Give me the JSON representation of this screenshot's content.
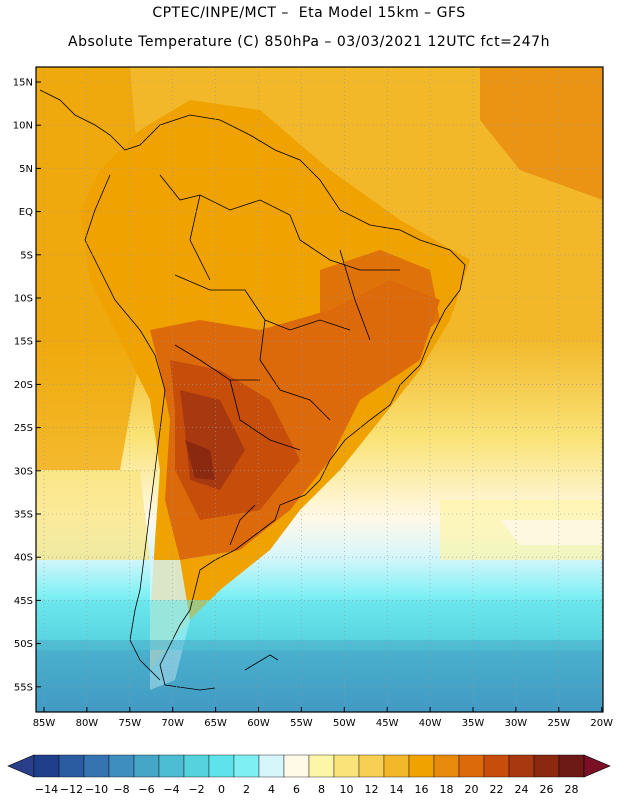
{
  "header": {
    "line1": "CPTEC/INPE/MCT –  Eta Model 15km – GFS",
    "line2": "Absolute Temperature (C) 850hPa – 03/03/2021 12UTC fct=247h"
  },
  "axes": {
    "lat_labels": [
      "15N",
      "10N",
      "5N",
      "EQ",
      "5S",
      "10S",
      "15S",
      "20S",
      "25S",
      "30S",
      "35S",
      "40S",
      "45S",
      "50S",
      "55S"
    ],
    "lon_labels": [
      "85W",
      "80W",
      "75W",
      "70W",
      "65W",
      "60W",
      "55W",
      "50W",
      "45W",
      "40W",
      "35W",
      "30W",
      "25W",
      "20W"
    ]
  },
  "colorbar": {
    "labels": [
      "-14",
      "-12",
      "-10",
      "-8",
      "-6",
      "-4",
      "-2",
      "0",
      "2",
      "4",
      "6",
      "8",
      "10",
      "12",
      "14",
      "16",
      "18",
      "20",
      "22",
      "24",
      "26",
      "28"
    ],
    "colors": [
      "#1f3f8a",
      "#2b5ba1",
      "#3574b0",
      "#3e8ebf",
      "#46a6c8",
      "#4dbdd3",
      "#55d2de",
      "#5fe3ea",
      "#7ef0f4",
      "#d6f6fb",
      "#fff9e8",
      "#fdf5a8",
      "#fae47a",
      "#f7cf52",
      "#f2b829",
      "#f0a300",
      "#e88a0c",
      "#dc6a0a",
      "#c74e0a",
      "#a8380f",
      "#8a2810",
      "#6d1a16"
    ],
    "under_color": "#2a3f8c",
    "over_color": "#7a0f25"
  }
}
